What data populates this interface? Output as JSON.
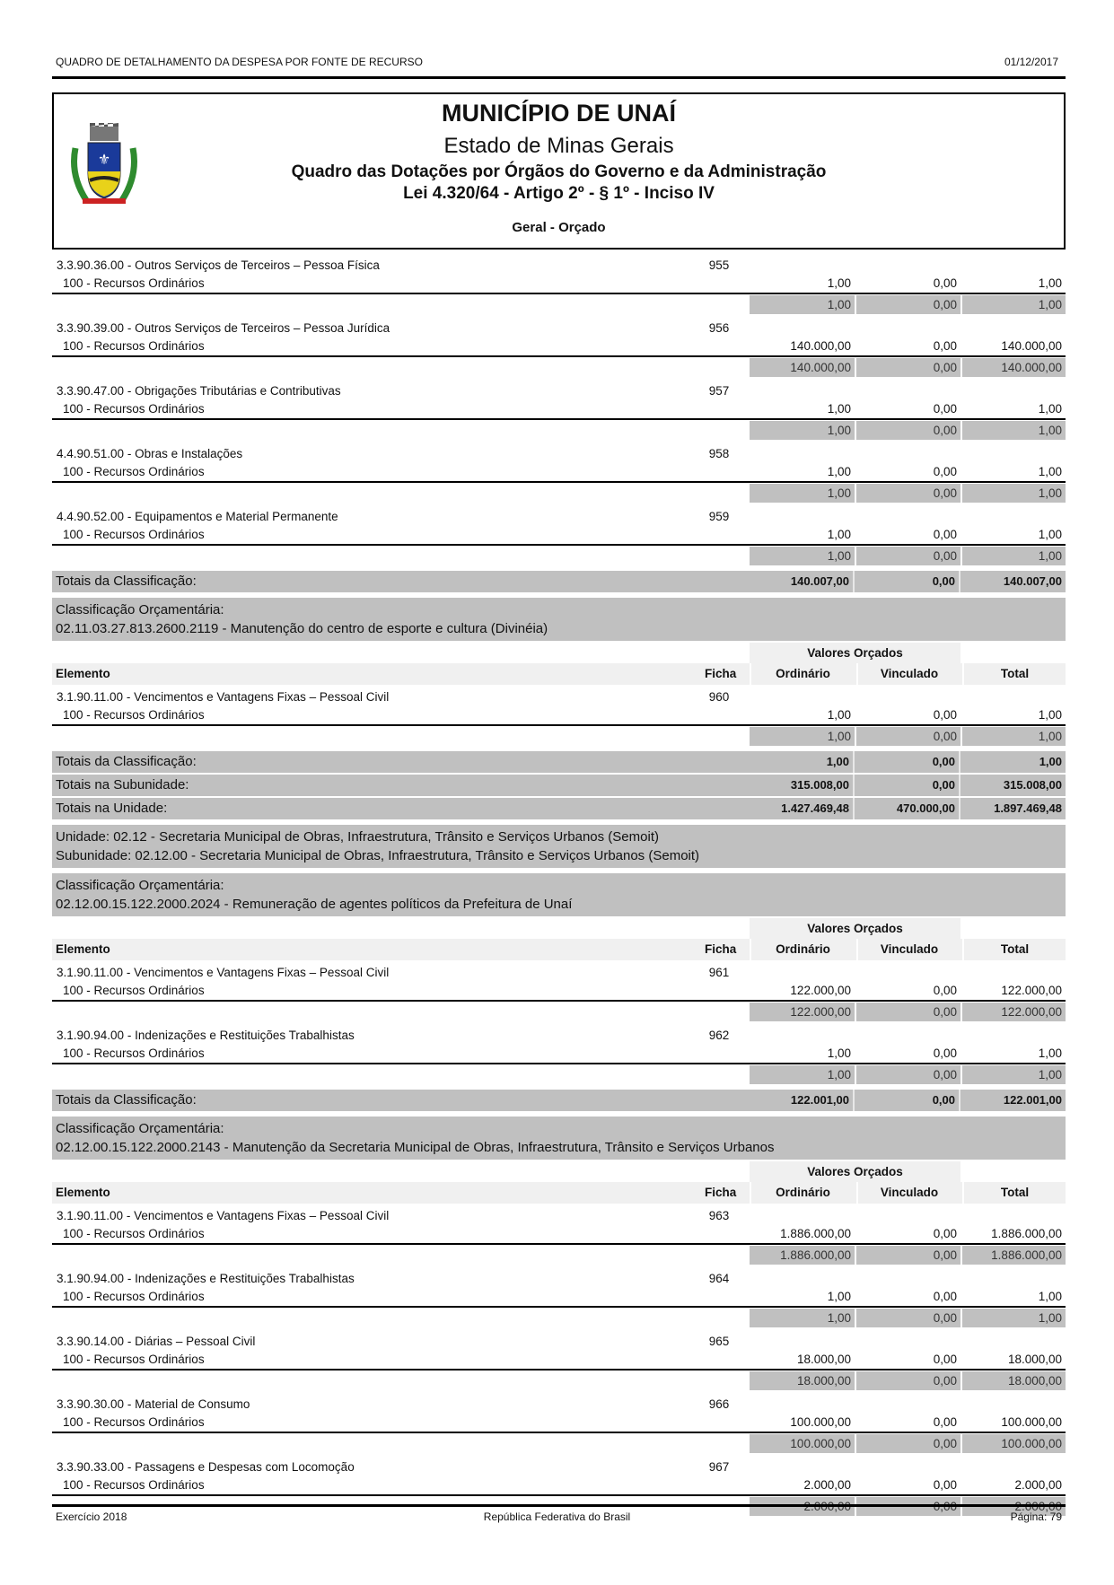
{
  "page_header": {
    "report_title": "QUADRO DE DETALHAMENTO DA DESPESA POR FONTE DE RECURSO",
    "date": "01/12/2017"
  },
  "title_box": {
    "municipality": "MUNICÍPIO DE UNAÍ",
    "state": "Estado de Minas Gerais",
    "report": "Quadro das Dotações por Órgãos do Governo e da Administração",
    "law": "Lei 4.320/64 - Artigo 2º - § 1º - Inciso IV",
    "scope": "Geral - Orçado",
    "logo": "coat-of-arms-unai"
  },
  "labels": {
    "valores": "Valores Orçados",
    "elemento": "Elemento",
    "ficha": "Ficha",
    "ordinario": "Ordinário",
    "vinculado": "Vinculado",
    "total": "Total",
    "class_title": "Classificação Orçamentária:",
    "tot_class": "Totais da Classificação:",
    "tot_sub": "Totais na Subunidade:",
    "tot_uni": "Totais na Unidade:"
  },
  "sections": [
    {
      "items": [
        {
          "elemento": "3.3.90.36.00 - Outros Serviços de Terceiros – Pessoa Física",
          "ficha": "955",
          "fonte": "100 - Recursos Ordinários",
          "ord": "1,00",
          "vin": "0,00",
          "tot": "1,00"
        },
        {
          "elemento": "3.3.90.39.00 - Outros Serviços de Terceiros – Pessoa Jurídica",
          "ficha": "956",
          "fonte": "100 - Recursos Ordinários",
          "ord": "140.000,00",
          "vin": "0,00",
          "tot": "140.000,00"
        },
        {
          "elemento": "3.3.90.47.00 - Obrigações Tributárias e Contributivas",
          "ficha": "957",
          "fonte": "100 - Recursos Ordinários",
          "ord": "1,00",
          "vin": "0,00",
          "tot": "1,00"
        },
        {
          "elemento": "4.4.90.51.00 - Obras e Instalações",
          "ficha": "958",
          "fonte": "100 - Recursos Ordinários",
          "ord": "1,00",
          "vin": "0,00",
          "tot": "1,00"
        },
        {
          "elemento": "4.4.90.52.00 - Equipamentos e Material Permanente",
          "ficha": "959",
          "fonte": "100 - Recursos Ordinários",
          "ord": "1,00",
          "vin": "0,00",
          "tot": "1,00"
        }
      ],
      "totals": [
        {
          "label_key": "tot_class",
          "ord": "140.007,00",
          "vin": "0,00",
          "tot": "140.007,00"
        }
      ]
    },
    {
      "classification": "02.11.03.27.813.2600.2119 - Manutenção do centro de esporte e cultura (Divinéia)",
      "items": [
        {
          "elemento": "3.1.90.11.00 - Vencimentos e Vantagens Fixas – Pessoal Civil",
          "ficha": "960",
          "fonte": "100 - Recursos Ordinários",
          "ord": "1,00",
          "vin": "0,00",
          "tot": "1,00"
        }
      ],
      "totals": [
        {
          "label_key": "tot_class",
          "ord": "1,00",
          "vin": "0,00",
          "tot": "1,00"
        },
        {
          "label_key": "tot_sub",
          "ord": "315.008,00",
          "vin": "0,00",
          "tot": "315.008,00"
        },
        {
          "label_key": "tot_uni",
          "ord": "1.427.469,48",
          "vin": "470.000,00",
          "tot": "1.897.469,48"
        }
      ]
    },
    {
      "unit": [
        "Unidade: 02.12 - Secretaria Municipal de Obras, Infraestrutura, Trânsito e Serviços Urbanos (Semoit)",
        "Subunidade: 02.12.00 - Secretaria Municipal de Obras, Infraestrutura, Trânsito e Serviços Urbanos (Semoit)"
      ],
      "classification": "02.12.00.15.122.2000.2024 - Remuneração de agentes políticos da Prefeitura de Unaí",
      "items": [
        {
          "elemento": "3.1.90.11.00 - Vencimentos e Vantagens Fixas – Pessoal Civil",
          "ficha": "961",
          "fonte": "100 - Recursos Ordinários",
          "ord": "122.000,00",
          "vin": "0,00",
          "tot": "122.000,00"
        },
        {
          "elemento": "3.1.90.94.00 - Indenizações e Restituições Trabalhistas",
          "ficha": "962",
          "fonte": "100 - Recursos Ordinários",
          "ord": "1,00",
          "vin": "0,00",
          "tot": "1,00"
        }
      ],
      "totals": [
        {
          "label_key": "tot_class",
          "ord": "122.001,00",
          "vin": "0,00",
          "tot": "122.001,00"
        }
      ]
    },
    {
      "classification": "02.12.00.15.122.2000.2143 - Manutenção da Secretaria Municipal de Obras, Infraestrutura, Trânsito e Serviços Urbanos",
      "items": [
        {
          "elemento": "3.1.90.11.00 - Vencimentos e Vantagens Fixas – Pessoal Civil",
          "ficha": "963",
          "fonte": "100 - Recursos Ordinários",
          "ord": "1.886.000,00",
          "vin": "0,00",
          "tot": "1.886.000,00"
        },
        {
          "elemento": "3.1.90.94.00 - Indenizações e Restituições Trabalhistas",
          "ficha": "964",
          "fonte": "100 - Recursos Ordinários",
          "ord": "1,00",
          "vin": "0,00",
          "tot": "1,00"
        },
        {
          "elemento": "3.3.90.14.00 - Diárias – Pessoal Civil",
          "ficha": "965",
          "fonte": "100 - Recursos Ordinários",
          "ord": "18.000,00",
          "vin": "0,00",
          "tot": "18.000,00"
        },
        {
          "elemento": "3.3.90.30.00 - Material de Consumo",
          "ficha": "966",
          "fonte": "100 - Recursos Ordinários",
          "ord": "100.000,00",
          "vin": "0,00",
          "tot": "100.000,00"
        },
        {
          "elemento": "3.3.90.33.00 - Passagens e Despesas com Locomoção",
          "ficha": "967",
          "fonte": "100 - Recursos Ordinários",
          "ord": "2.000,00",
          "vin": "0,00",
          "tot": "2.000,00"
        }
      ],
      "totals": []
    }
  ],
  "footer": {
    "left": "Exercício 2018",
    "center": "República Federativa do Brasil",
    "right": "Página: 79"
  }
}
